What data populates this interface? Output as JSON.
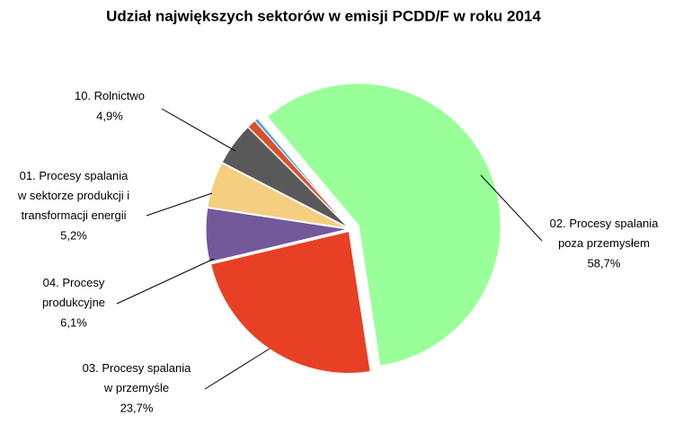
{
  "chart_data": {
    "type": "pie",
    "title": "Udział największych sektorów w emisji PCDD/F w roku 2014",
    "categories": [
      "02. Procesy spalania\npoza przemysłem",
      "03. Procesy spalania\nw przemyśle",
      "04. Procesy\nprodukcyjne",
      "01. Procesy spalania\nw sektorze produkcji i\ntransformacji energii",
      "10. Rolnictwo",
      null,
      null
    ],
    "values": [
      58.7,
      23.7,
      6.1,
      5.2,
      4.9,
      1.0,
      0.4
    ],
    "value_labels": [
      "58,7%",
      "23,7%",
      "6,1%",
      "5,2%",
      "4,9%",
      null,
      null
    ],
    "colors": [
      "#99ff99",
      "#e84025",
      "#73589a",
      "#f5cf7f",
      "#595959",
      "#d9502f",
      "#4fa3e0"
    ]
  }
}
